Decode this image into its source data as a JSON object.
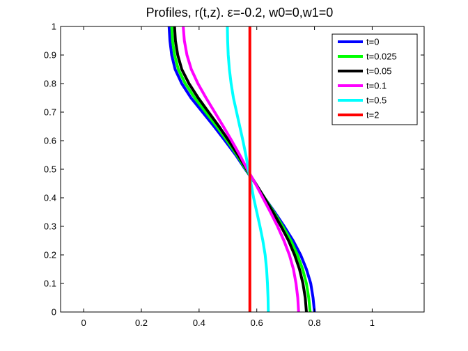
{
  "chart_data": {
    "type": "line",
    "title": "Profiles, r(t,z).   ε=-0.2, w0=0,w1=0",
    "xlabel": "",
    "ylabel": "",
    "xlim": [
      -0.08,
      1.18
    ],
    "ylim": [
      0,
      1
    ],
    "xticks": [
      0,
      0.2,
      0.4,
      0.6,
      0.8,
      1
    ],
    "xtick_labels": [
      "0",
      "0.2",
      "0.4",
      "0.6",
      "0.8",
      "1"
    ],
    "yticks": [
      0,
      0.1,
      0.2,
      0.3,
      0.4,
      0.5,
      0.6,
      0.7,
      0.8,
      0.9,
      1
    ],
    "ytick_labels": [
      "0",
      "0.1",
      "0.2",
      "0.3",
      "0.4",
      "0.5",
      "0.6",
      "0.7",
      "0.8",
      "0.9",
      "1"
    ],
    "grid": false,
    "legend_position": "top-right",
    "series": [
      {
        "name": "t=0",
        "color": "#0000ff",
        "points": [
          [
            0.8,
            0
          ],
          [
            0.795,
            0.05
          ],
          [
            0.787,
            0.1
          ],
          [
            0.772,
            0.15
          ],
          [
            0.752,
            0.2
          ],
          [
            0.726,
            0.25
          ],
          [
            0.695,
            0.3
          ],
          [
            0.662,
            0.35
          ],
          [
            0.627,
            0.4
          ],
          [
            0.595,
            0.45
          ],
          [
            0.56,
            0.5
          ],
          [
            0.527,
            0.55
          ],
          [
            0.49,
            0.6
          ],
          [
            0.452,
            0.65
          ],
          [
            0.412,
            0.7
          ],
          [
            0.372,
            0.75
          ],
          [
            0.34,
            0.8
          ],
          [
            0.317,
            0.85
          ],
          [
            0.305,
            0.9
          ],
          [
            0.299,
            0.95
          ],
          [
            0.296,
            1.0
          ]
        ]
      },
      {
        "name": "t=0.025",
        "color": "#00ff00",
        "points": [
          [
            0.785,
            0
          ],
          [
            0.78,
            0.05
          ],
          [
            0.772,
            0.1
          ],
          [
            0.759,
            0.15
          ],
          [
            0.741,
            0.2
          ],
          [
            0.718,
            0.25
          ],
          [
            0.69,
            0.3
          ],
          [
            0.659,
            0.35
          ],
          [
            0.627,
            0.4
          ],
          [
            0.595,
            0.45
          ],
          [
            0.562,
            0.5
          ],
          [
            0.531,
            0.55
          ],
          [
            0.497,
            0.6
          ],
          [
            0.461,
            0.65
          ],
          [
            0.423,
            0.7
          ],
          [
            0.385,
            0.75
          ],
          [
            0.352,
            0.8
          ],
          [
            0.328,
            0.85
          ],
          [
            0.315,
            0.9
          ],
          [
            0.308,
            0.95
          ],
          [
            0.305,
            1.0
          ]
        ]
      },
      {
        "name": "t=0.05",
        "color": "#000000",
        "points": [
          [
            0.772,
            0
          ],
          [
            0.768,
            0.05
          ],
          [
            0.76,
            0.1
          ],
          [
            0.748,
            0.15
          ],
          [
            0.731,
            0.2
          ],
          [
            0.71,
            0.25
          ],
          [
            0.684,
            0.3
          ],
          [
            0.656,
            0.35
          ],
          [
            0.626,
            0.4
          ],
          [
            0.596,
            0.45
          ],
          [
            0.565,
            0.5
          ],
          [
            0.535,
            0.55
          ],
          [
            0.503,
            0.6
          ],
          [
            0.469,
            0.65
          ],
          [
            0.433,
            0.7
          ],
          [
            0.397,
            0.75
          ],
          [
            0.365,
            0.8
          ],
          [
            0.34,
            0.85
          ],
          [
            0.326,
            0.9
          ],
          [
            0.318,
            0.95
          ],
          [
            0.315,
            1.0
          ]
        ]
      },
      {
        "name": "t=0.1",
        "color": "#ff00ff",
        "points": [
          [
            0.745,
            0
          ],
          [
            0.742,
            0.05
          ],
          [
            0.736,
            0.1
          ],
          [
            0.727,
            0.15
          ],
          [
            0.713,
            0.2
          ],
          [
            0.694,
            0.25
          ],
          [
            0.672,
            0.3
          ],
          [
            0.647,
            0.35
          ],
          [
            0.621,
            0.4
          ],
          [
            0.595,
            0.45
          ],
          [
            0.567,
            0.5
          ],
          [
            0.541,
            0.55
          ],
          [
            0.513,
            0.6
          ],
          [
            0.484,
            0.65
          ],
          [
            0.454,
            0.7
          ],
          [
            0.424,
            0.75
          ],
          [
            0.396,
            0.8
          ],
          [
            0.373,
            0.85
          ],
          [
            0.358,
            0.9
          ],
          [
            0.349,
            0.95
          ],
          [
            0.345,
            1.0
          ]
        ]
      },
      {
        "name": "t=0.5",
        "color": "#00ffff",
        "points": [
          [
            0.64,
            0
          ],
          [
            0.639,
            0.05
          ],
          [
            0.637,
            0.1
          ],
          [
            0.634,
            0.15
          ],
          [
            0.629,
            0.2
          ],
          [
            0.621,
            0.25
          ],
          [
            0.611,
            0.3
          ],
          [
            0.6,
            0.35
          ],
          [
            0.589,
            0.4
          ],
          [
            0.58,
            0.45
          ],
          [
            0.571,
            0.5
          ],
          [
            0.562,
            0.55
          ],
          [
            0.552,
            0.6
          ],
          [
            0.541,
            0.65
          ],
          [
            0.53,
            0.7
          ],
          [
            0.519,
            0.75
          ],
          [
            0.511,
            0.8
          ],
          [
            0.505,
            0.85
          ],
          [
            0.501,
            0.9
          ],
          [
            0.499,
            0.95
          ],
          [
            0.498,
            1.0
          ]
        ]
      },
      {
        "name": "t=2",
        "color": "#ff0000",
        "points": [
          [
            0.576,
            0
          ],
          [
            0.576,
            1.0
          ]
        ]
      }
    ]
  }
}
